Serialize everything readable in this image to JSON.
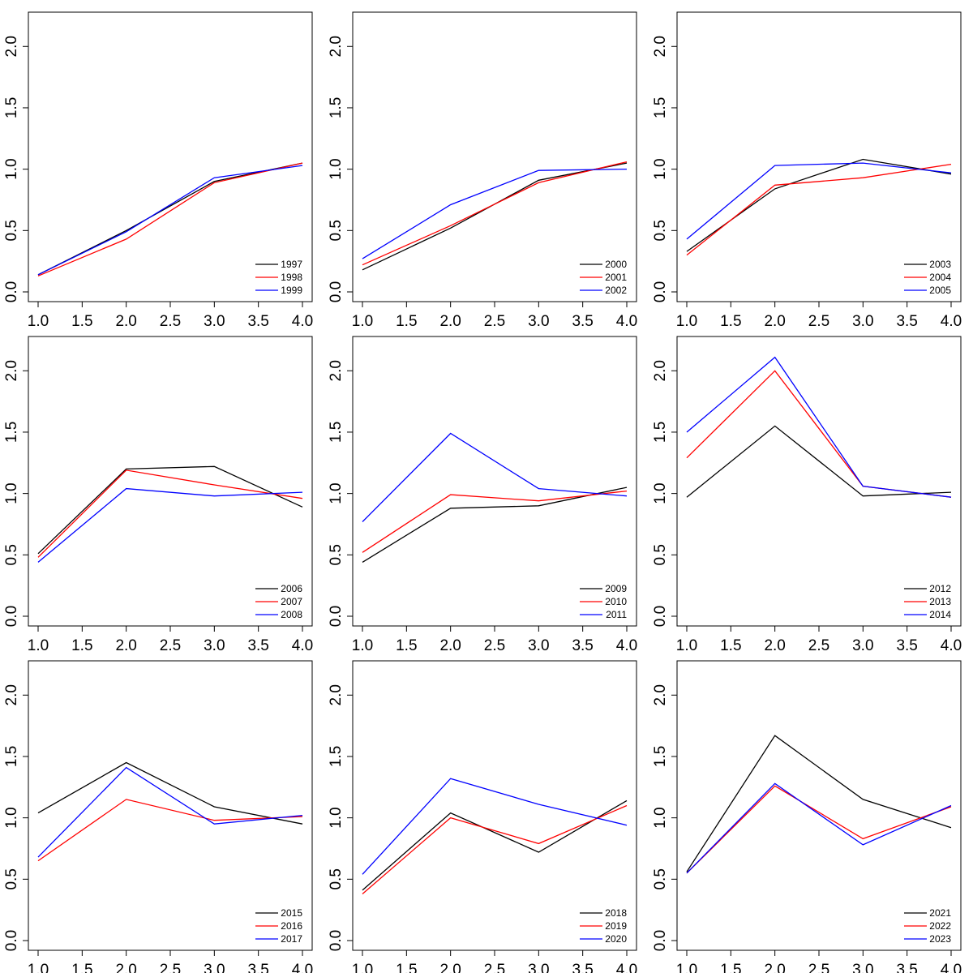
{
  "chart_data": [
    {
      "type": "line",
      "x": [
        1,
        2,
        3,
        4
      ],
      "ylim": [
        0,
        2.2
      ],
      "xlim": [
        1,
        4
      ],
      "legend": "bottom-right",
      "series": [
        {
          "name": "1997",
          "color": "#000000",
          "values": [
            0.14,
            0.5,
            0.9,
            1.05
          ]
        },
        {
          "name": "1998",
          "color": "#ff0000",
          "values": [
            0.13,
            0.43,
            0.89,
            1.05
          ]
        },
        {
          "name": "1999",
          "color": "#0000ff",
          "values": [
            0.14,
            0.49,
            0.93,
            1.03
          ]
        }
      ]
    },
    {
      "type": "line",
      "x": [
        1,
        2,
        3,
        4
      ],
      "ylim": [
        0,
        2.2
      ],
      "xlim": [
        1,
        4
      ],
      "legend": "bottom-right",
      "series": [
        {
          "name": "2000",
          "color": "#000000",
          "values": [
            0.18,
            0.52,
            0.91,
            1.05
          ]
        },
        {
          "name": "2001",
          "color": "#ff0000",
          "values": [
            0.22,
            0.54,
            0.89,
            1.06
          ]
        },
        {
          "name": "2002",
          "color": "#0000ff",
          "values": [
            0.27,
            0.71,
            0.99,
            1.0
          ]
        }
      ]
    },
    {
      "type": "line",
      "x": [
        1,
        2,
        3,
        4
      ],
      "ylim": [
        0,
        2.2
      ],
      "xlim": [
        1,
        4
      ],
      "legend": "bottom-right",
      "series": [
        {
          "name": "2003",
          "color": "#000000",
          "values": [
            0.33,
            0.84,
            1.08,
            0.96
          ]
        },
        {
          "name": "2004",
          "color": "#ff0000",
          "values": [
            0.3,
            0.87,
            0.93,
            1.04
          ]
        },
        {
          "name": "2005",
          "color": "#0000ff",
          "values": [
            0.43,
            1.03,
            1.05,
            0.97
          ]
        }
      ]
    },
    {
      "type": "line",
      "x": [
        1,
        2,
        3,
        4
      ],
      "ylim": [
        0,
        2.2
      ],
      "xlim": [
        1,
        4
      ],
      "legend": "bottom-right",
      "series": [
        {
          "name": "2006",
          "color": "#000000",
          "values": [
            0.51,
            1.2,
            1.22,
            0.89
          ]
        },
        {
          "name": "2007",
          "color": "#ff0000",
          "values": [
            0.48,
            1.19,
            1.07,
            0.96
          ]
        },
        {
          "name": "2008",
          "color": "#0000ff",
          "values": [
            0.44,
            1.04,
            0.98,
            1.01
          ]
        }
      ]
    },
    {
      "type": "line",
      "x": [
        1,
        2,
        3,
        4
      ],
      "ylim": [
        0,
        2.2
      ],
      "xlim": [
        1,
        4
      ],
      "legend": "bottom-right",
      "series": [
        {
          "name": "2009",
          "color": "#000000",
          "values": [
            0.44,
            0.88,
            0.9,
            1.05
          ]
        },
        {
          "name": "2010",
          "color": "#ff0000",
          "values": [
            0.52,
            0.99,
            0.94,
            1.02
          ]
        },
        {
          "name": "2011",
          "color": "#0000ff",
          "values": [
            0.77,
            1.49,
            1.04,
            0.98
          ]
        }
      ]
    },
    {
      "type": "line",
      "x": [
        1,
        2,
        3,
        4
      ],
      "ylim": [
        0,
        2.2
      ],
      "xlim": [
        1,
        4
      ],
      "legend": "bottom-right",
      "series": [
        {
          "name": "2012",
          "color": "#000000",
          "values": [
            0.97,
            1.55,
            0.98,
            1.01
          ]
        },
        {
          "name": "2013",
          "color": "#ff0000",
          "values": [
            1.29,
            2.0,
            1.06,
            0.97
          ]
        },
        {
          "name": "2014",
          "color": "#0000ff",
          "values": [
            1.5,
            2.11,
            1.06,
            0.97
          ]
        }
      ]
    },
    {
      "type": "line",
      "x": [
        1,
        2,
        3,
        4
      ],
      "ylim": [
        0,
        2.2
      ],
      "xlim": [
        1,
        4
      ],
      "legend": "bottom-right",
      "series": [
        {
          "name": "2015",
          "color": "#000000",
          "values": [
            1.04,
            1.45,
            1.09,
            0.95
          ]
        },
        {
          "name": "2016",
          "color": "#ff0000",
          "values": [
            0.65,
            1.15,
            0.98,
            1.01
          ]
        },
        {
          "name": "2017",
          "color": "#0000ff",
          "values": [
            0.68,
            1.41,
            0.95,
            1.02
          ]
        }
      ]
    },
    {
      "type": "line",
      "x": [
        1,
        2,
        3,
        4
      ],
      "ylim": [
        0,
        2.2
      ],
      "xlim": [
        1,
        4
      ],
      "legend": "bottom-right",
      "series": [
        {
          "name": "2018",
          "color": "#000000",
          "values": [
            0.41,
            1.04,
            0.72,
            1.14
          ]
        },
        {
          "name": "2019",
          "color": "#ff0000",
          "values": [
            0.38,
            1.0,
            0.79,
            1.1
          ]
        },
        {
          "name": "2020",
          "color": "#0000ff",
          "values": [
            0.54,
            1.32,
            1.11,
            0.94
          ]
        }
      ]
    },
    {
      "type": "line",
      "x": [
        1,
        2,
        3,
        4
      ],
      "ylim": [
        0,
        2.2
      ],
      "xlim": [
        1,
        4
      ],
      "legend": "bottom-right",
      "series": [
        {
          "name": "2021",
          "color": "#000000",
          "values": [
            0.56,
            1.67,
            1.15,
            0.92
          ]
        },
        {
          "name": "2022",
          "color": "#ff0000",
          "values": [
            0.55,
            1.26,
            0.83,
            1.09
          ]
        },
        {
          "name": "2023",
          "color": "#0000ff",
          "values": [
            0.55,
            1.28,
            0.78,
            1.1
          ]
        }
      ]
    }
  ],
  "axes": {
    "x_ticks": [
      "1.0",
      "1.5",
      "2.0",
      "2.5",
      "3.0",
      "3.5",
      "4.0"
    ],
    "y_ticks": [
      "0.0",
      "0.5",
      "1.0",
      "1.5",
      "2.0"
    ]
  }
}
